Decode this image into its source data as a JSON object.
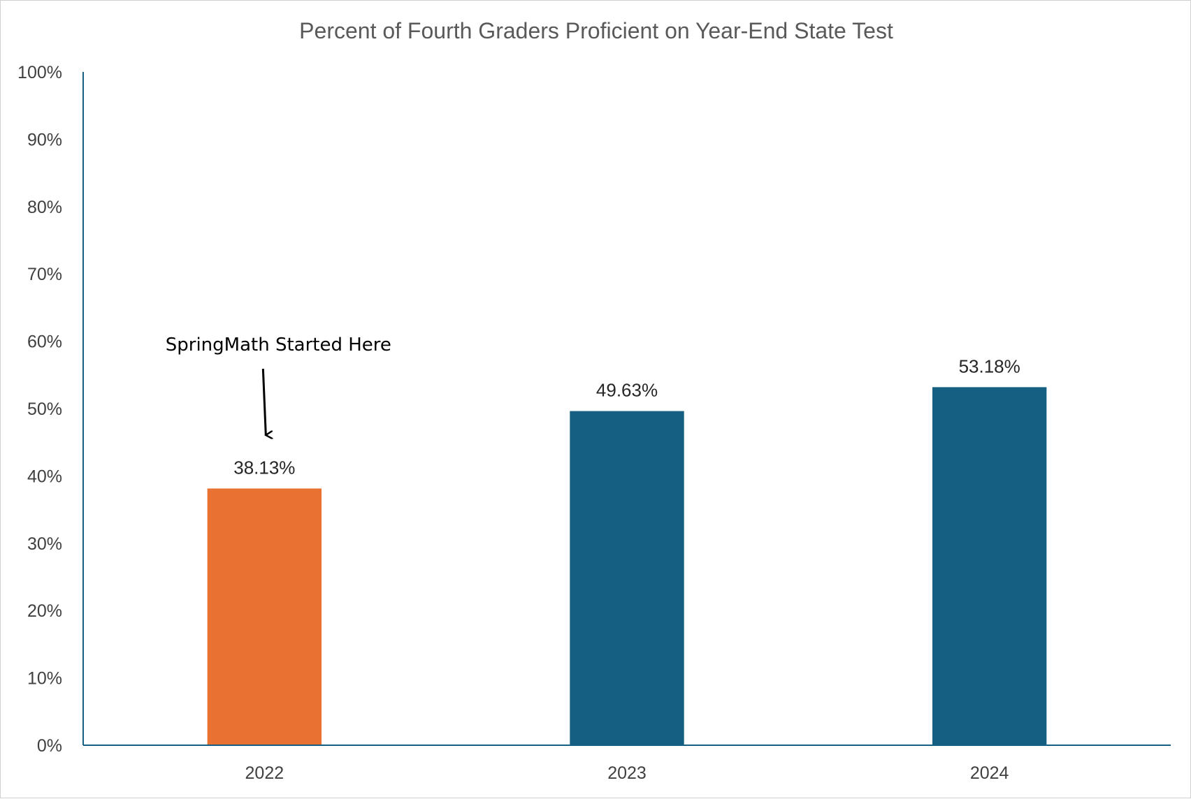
{
  "chart_data": {
    "type": "bar",
    "title": "Percent of Fourth Graders Proficient on Year-End State Test",
    "xlabel": "",
    "ylabel": "",
    "categories": [
      "2022",
      "2023",
      "2024"
    ],
    "values": [
      38.13,
      49.63,
      53.18
    ],
    "data_labels": [
      "38.13%",
      "49.63%",
      "53.18%"
    ],
    "bar_colors": [
      "#E97132",
      "#156082",
      "#156082"
    ],
    "axis_color": "#156082",
    "ylim": [
      0,
      100
    ],
    "yticks": [
      0,
      10,
      20,
      30,
      40,
      50,
      60,
      70,
      80,
      90,
      100
    ],
    "ytick_labels": [
      "0%",
      "10%",
      "20%",
      "30%",
      "40%",
      "50%",
      "60%",
      "70%",
      "80%",
      "90%",
      "100%"
    ],
    "grid": false,
    "legend": "none",
    "annotation": {
      "text": "SpringMath Started Here",
      "category": "2022"
    }
  }
}
